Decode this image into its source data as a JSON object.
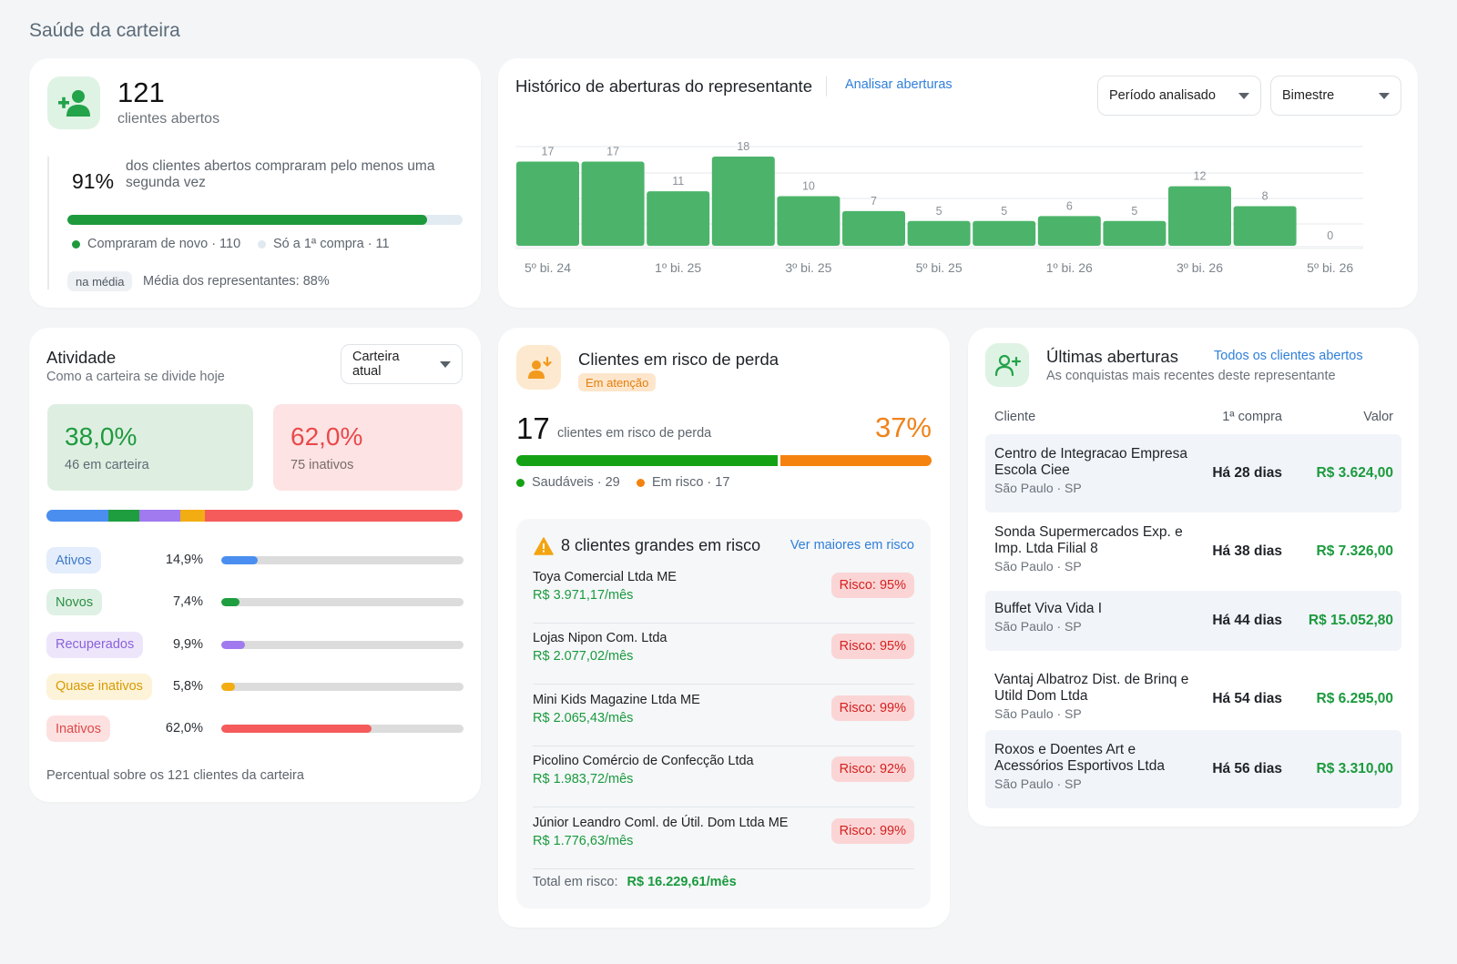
{
  "page": {
    "title": "Saúde da carteira"
  },
  "opened": {
    "count": "121",
    "label": "clientes abertos",
    "repeat_pct": "91%",
    "repeat_text": "dos clientes abertos compraram pelo menos uma segunda vez",
    "progress_fraction": 0.91,
    "legend_repeat": "Compraram de novo · 110",
    "legend_first": "Só a 1ª compra · 11",
    "avg_tag": "na média",
    "avg_text": "Média dos representantes: 88%"
  },
  "history": {
    "title": "Histórico de aberturas do representante",
    "link": "Analisar aberturas",
    "period_select": "Período analisado",
    "granularity_select": "Bimestre"
  },
  "chart_data": {
    "type": "bar",
    "title": "Histórico de aberturas do representante",
    "values": [
      17,
      17,
      11,
      18,
      10,
      7,
      5,
      5,
      6,
      5,
      12,
      8,
      0
    ],
    "x_tick_labels": [
      "5º bi. 24",
      "1º bi. 25",
      "3º bi. 25",
      "5º bi. 25",
      "1º bi. 26",
      "3º bi. 26",
      "5º bi. 26"
    ],
    "tick_every": 2,
    "ylim": [
      0,
      18
    ],
    "grid": true,
    "bar_color": "#4cb46a"
  },
  "activity": {
    "title": "Atividade",
    "subtitle": "Como a carteira se divide hoje",
    "select": "Carteira atual",
    "active_pct": "38,0%",
    "active_label": "46 em carteira",
    "inactive_pct": "62,0%",
    "inactive_label": "75 inativos",
    "segments": [
      {
        "label": "Ativos",
        "pct": "14,9%",
        "value": 14.9,
        "color": "#4a8ff0",
        "bg": "#e3edfb",
        "fg": "#3f78c9"
      },
      {
        "label": "Novos",
        "pct": "7,4%",
        "value": 7.4,
        "color": "#1e9e3f",
        "bg": "#dff1e4",
        "fg": "#2c8f44"
      },
      {
        "label": "Recuperados",
        "pct": "9,9%",
        "value": 9.9,
        "color": "#a07aee",
        "bg": "#ede6fb",
        "fg": "#8a62da"
      },
      {
        "label": "Quase inativos",
        "pct": "5,8%",
        "value": 5.8,
        "color": "#f2ad12",
        "bg": "#fdf3d8",
        "fg": "#d99a00"
      },
      {
        "label": "Inativos",
        "pct": "62,0%",
        "value": 62.0,
        "color": "#f55b5b",
        "bg": "#fde1e1",
        "fg": "#e04848"
      }
    ],
    "footnote": "Percentual sobre os 121 clientes da carteira"
  },
  "risk": {
    "title": "Clientes em risco de perda",
    "badge": "Em atenção",
    "count": "17",
    "count_label": "clientes em risco de perda",
    "pct": "37%",
    "healthy_fraction": 0.63,
    "legend_healthy": "Saudáveis · 29",
    "legend_risk": "Em risco · 17",
    "big_title": "8 clientes grandes em risco",
    "big_link": "Ver maiores em risco",
    "items": [
      {
        "name": "Toya Comercial Ltda ME",
        "value": "R$ 3.971,17/mês",
        "risk": "Risco: 95%"
      },
      {
        "name": "Lojas Nipon Com. Ltda",
        "value": "R$ 2.077,02/mês",
        "risk": "Risco: 95%"
      },
      {
        "name": "Mini Kids Magazine Ltda ME",
        "value": "R$ 2.065,43/mês",
        "risk": "Risco: 99%"
      },
      {
        "name": "Picolino Comércio de Confecção Ltda",
        "value": "R$ 1.983,72/mês",
        "risk": "Risco: 92%"
      },
      {
        "name": "Júnior Leandro Coml. de Útil. Dom Ltda ME",
        "value": "R$ 1.776,63/mês",
        "risk": "Risco: 99%"
      }
    ],
    "total_label": "Total em risco:",
    "total_value": "R$ 16.229,61/mês"
  },
  "latest": {
    "title": "Últimas aberturas",
    "link": "Todos os clientes abertos",
    "subtitle": "As conquistas mais recentes deste representante",
    "col_client": "Cliente",
    "col_first": "1ª compra",
    "col_value": "Valor",
    "rows": [
      {
        "name": "Centro de Integracao Empresa Escola Ciee",
        "loc": "São Paulo · SP",
        "days": "Há 28 dias",
        "value": "R$ 3.624,00"
      },
      {
        "name": "Sonda Supermercados Exp. e Imp. Ltda Filial 8",
        "loc": "São Paulo · SP",
        "days": "Há 38 dias",
        "value": "R$ 7.326,00"
      },
      {
        "name": "Buffet Viva Vida I",
        "loc": "São Paulo · SP",
        "days": "Há 44 dias",
        "value": "R$ 15.052,80"
      },
      {
        "name": "Vantaj Albatroz Dist. de Brinq e Utild Dom Ltda",
        "loc": "São Paulo · SP",
        "days": "Há 54 dias",
        "value": "R$ 6.295,00"
      },
      {
        "name": "Roxos e Doentes Art e Acessórios Esportivos Ltda",
        "loc": "São Paulo · SP",
        "days": "Há 56 dias",
        "value": "R$ 3.310,00"
      }
    ]
  }
}
